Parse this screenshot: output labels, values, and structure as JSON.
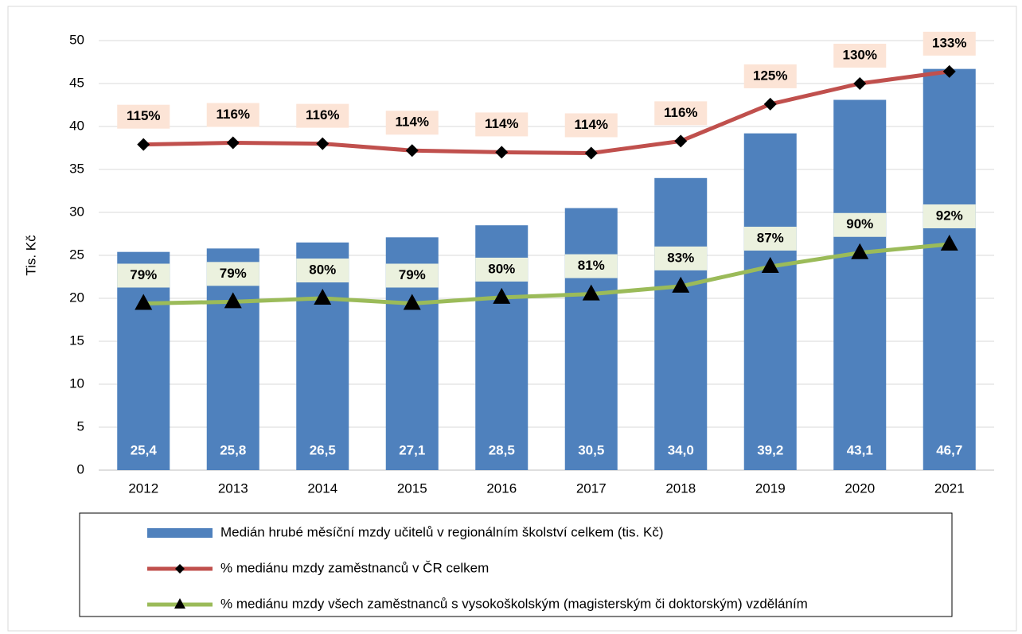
{
  "chart_data": {
    "type": "bar",
    "y_label": "Tis. Kč",
    "categories": [
      "2012",
      "2013",
      "2014",
      "2015",
      "2016",
      "2017",
      "2018",
      "2019",
      "2020",
      "2021"
    ],
    "ylim": [
      0,
      50
    ],
    "yticks": [
      0,
      5,
      10,
      15,
      20,
      25,
      30,
      35,
      40,
      45,
      50
    ],
    "grid": true,
    "series": [
      {
        "name": "Medián hrubé měsíční mzdy učitelů v regionálním školství celkem (tis. Kč)",
        "type": "bar",
        "color": "#4f81bd",
        "values": [
          25.4,
          25.8,
          26.5,
          27.1,
          28.5,
          30.5,
          34.0,
          39.2,
          43.1,
          46.7
        ],
        "value_labels": [
          "25,4",
          "25,8",
          "26,5",
          "27,1",
          "28,5",
          "30,5",
          "34,0",
          "39,2",
          "43,1",
          "46,7"
        ]
      },
      {
        "name": "% mediánu mzdy zaměstnanců v ČR celkem",
        "type": "line",
        "color": "#c0504d",
        "marker": "diamond",
        "label_bg": "#fce4d6",
        "values": [
          37.9,
          38.1,
          38.0,
          37.2,
          37.0,
          36.9,
          38.3,
          42.6,
          45.0,
          46.4
        ],
        "labels": [
          "115%",
          "116%",
          "116%",
          "114%",
          "114%",
          "114%",
          "116%",
          "125%",
          "130%",
          "133%"
        ]
      },
      {
        "name": "% mediánu mzdy všech zaměstnanců s vysokoškolským (magisterským či doktorským) vzděláním",
        "type": "line",
        "color": "#9bbb59",
        "marker": "triangle",
        "label_bg": "#ebf1de",
        "values": [
          19.4,
          19.6,
          20.0,
          19.4,
          20.1,
          20.5,
          21.4,
          23.7,
          25.3,
          26.3
        ],
        "labels": [
          "79%",
          "79%",
          "80%",
          "79%",
          "80%",
          "81%",
          "83%",
          "87%",
          "90%",
          "92%"
        ]
      }
    ]
  }
}
